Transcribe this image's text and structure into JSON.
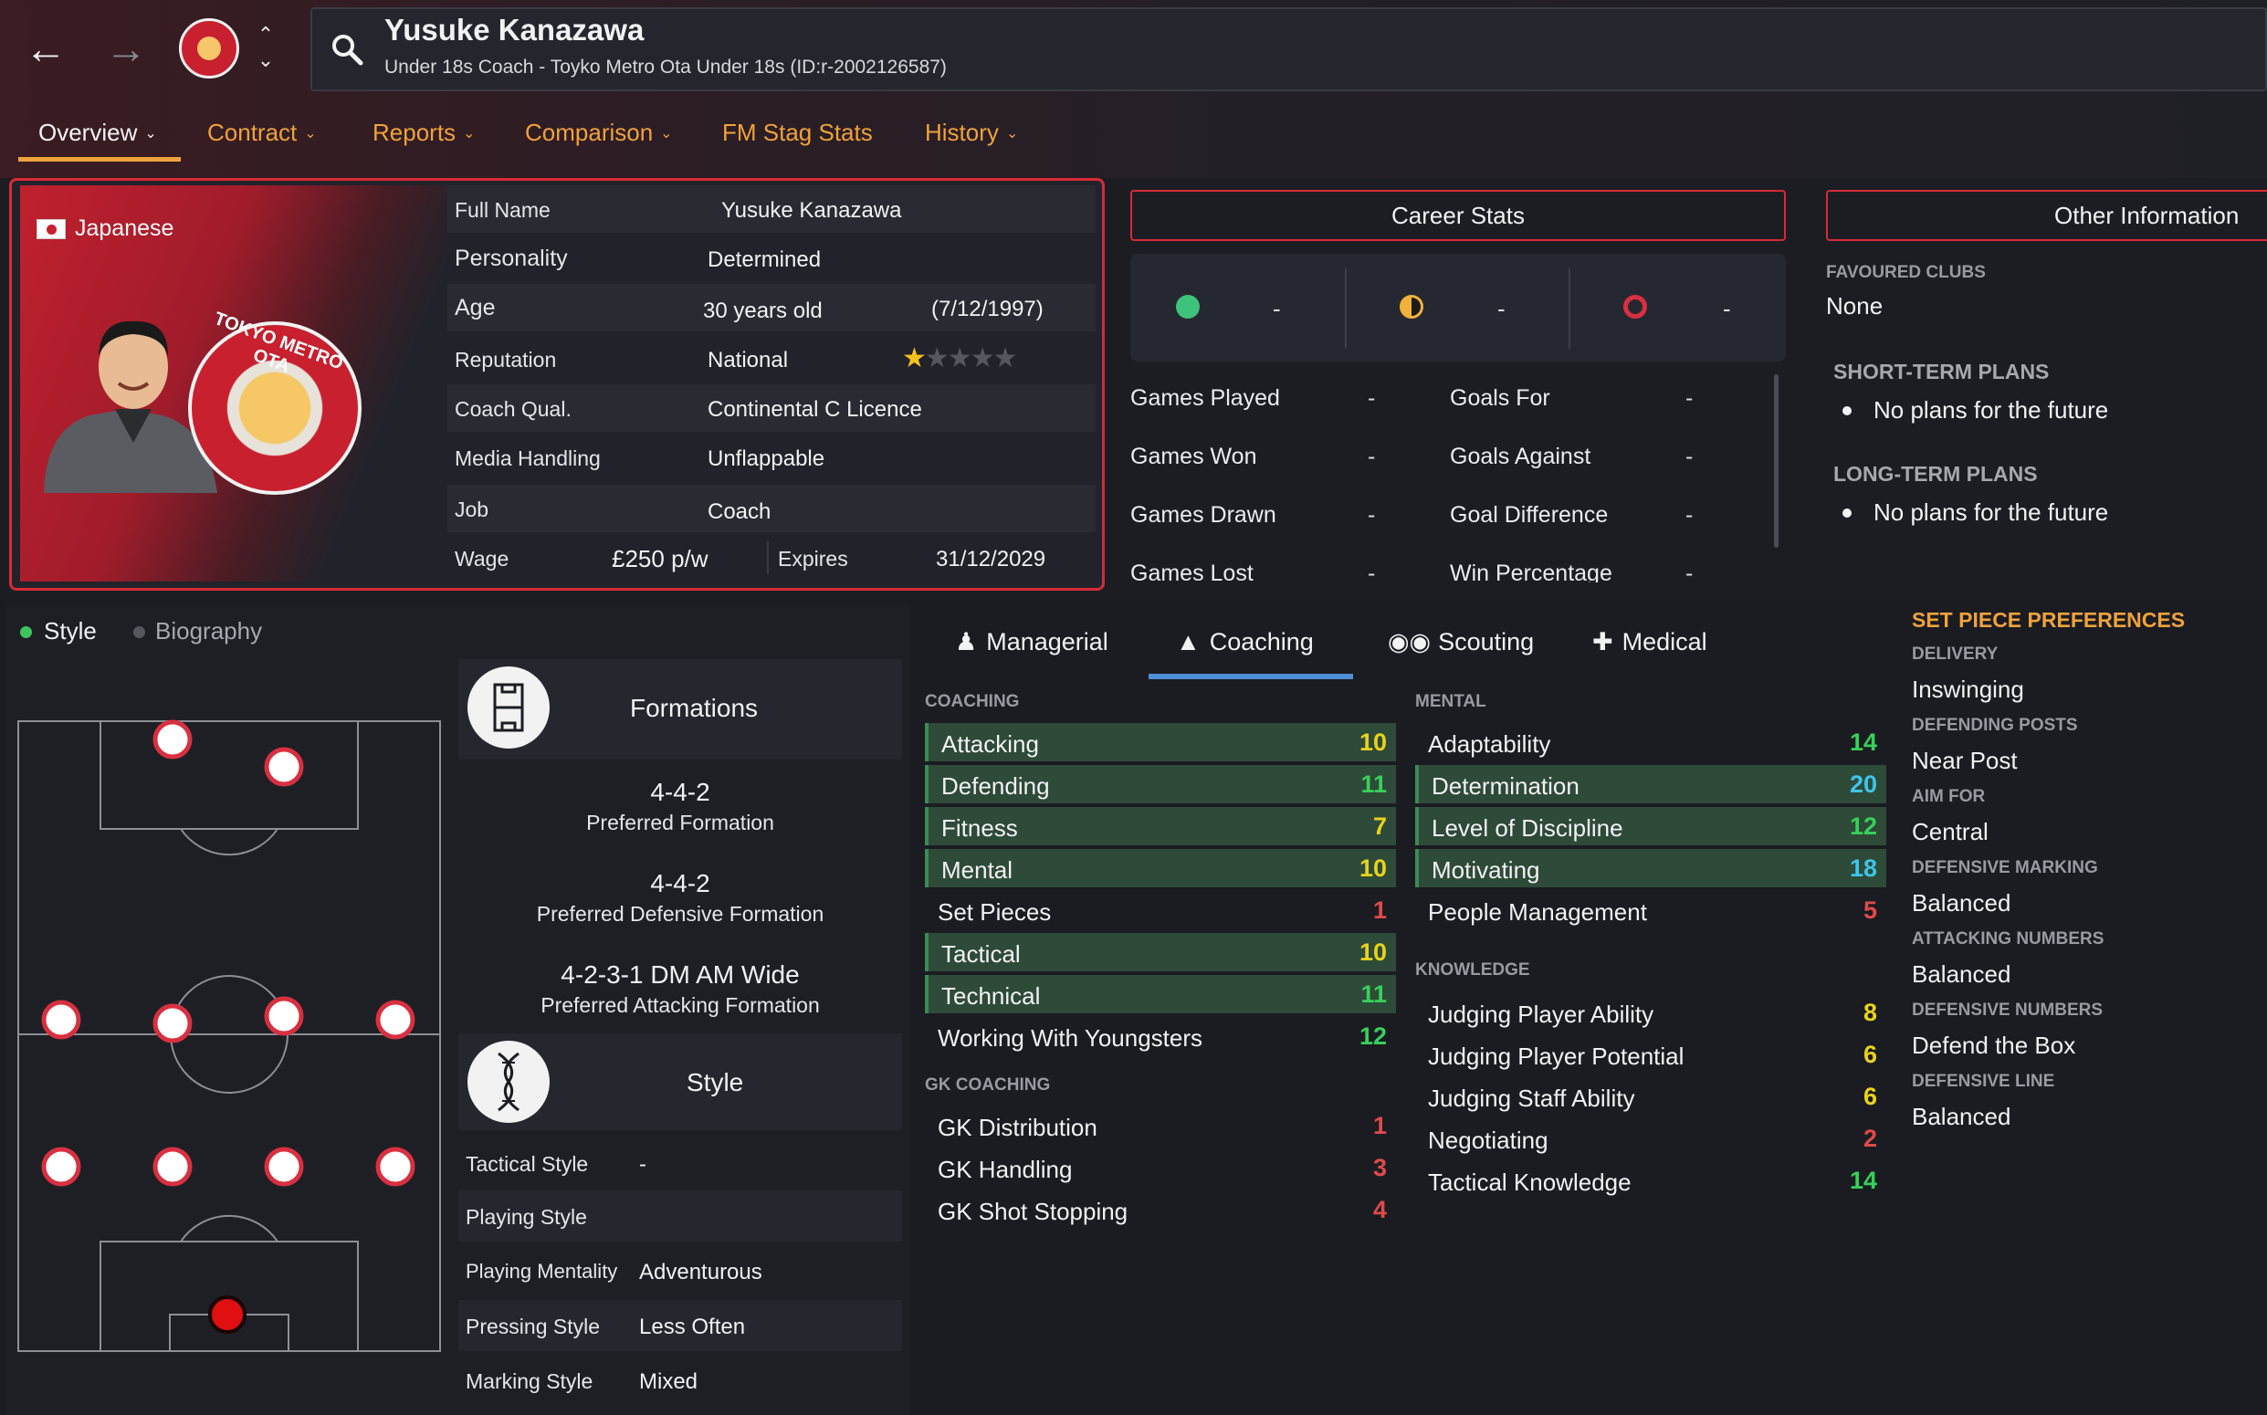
{
  "colors": {
    "accent": "#f0a23a",
    "card_border": "#d82a36",
    "highlight_row": "#2e4a38",
    "tab_underline": "#4e8fd6"
  },
  "header": {
    "title": "Yusuke Kanazawa",
    "subtitle": "Under 18s Coach - Toyko Metro Ota Under 18s (ID:r-2002126587)"
  },
  "tabs": [
    {
      "label": "Overview",
      "dropdown": true
    },
    {
      "label": "Contract",
      "dropdown": true
    },
    {
      "label": "Reports",
      "dropdown": true
    },
    {
      "label": "Comparison",
      "dropdown": true
    },
    {
      "label": "FM Stag Stats",
      "dropdown": false
    },
    {
      "label": "History",
      "dropdown": true
    }
  ],
  "profile": {
    "nationality": "Japanese",
    "club_crest_text": "TOKYO METRO OTA",
    "rows": [
      {
        "label": "Full Name",
        "value": "Yusuke Kanazawa"
      },
      {
        "label": "Personality",
        "value": "Determined"
      },
      {
        "label": "Age",
        "value": "30 years old",
        "extra": "(7/12/1997)"
      },
      {
        "label": "Reputation",
        "value": "National",
        "stars": 1,
        "stars_max": 5
      },
      {
        "label": "Coach Qual.",
        "value": "Continental C Licence"
      },
      {
        "label": "Media Handling",
        "value": "Unflappable"
      },
      {
        "label": "Job",
        "value": "Coach"
      },
      {
        "label": "Wage",
        "value": "£250 p/w",
        "extra_label": "Expires",
        "extra": "31/12/2029"
      }
    ]
  },
  "career_stats": {
    "title": "Career Stats",
    "summary": [
      "-",
      "-",
      "-"
    ],
    "left": [
      {
        "label": "Games Played",
        "value": "-"
      },
      {
        "label": "Games Won",
        "value": "-"
      },
      {
        "label": "Games Drawn",
        "value": "-"
      },
      {
        "label": "Games Lost",
        "value": "-"
      }
    ],
    "right": [
      {
        "label": "Goals For",
        "value": "-"
      },
      {
        "label": "Goals Against",
        "value": "-"
      },
      {
        "label": "Goal Difference",
        "value": "-"
      },
      {
        "label": "Win Percentage",
        "value": "-"
      }
    ]
  },
  "other_info": {
    "title": "Other Information",
    "favoured_clubs_label": "FAVOURED CLUBS",
    "favoured_clubs": "None",
    "short_term_label": "SHORT-TERM PLANS",
    "short_term": "No plans for the future",
    "long_term_label": "LONG-TERM PLANS",
    "long_term": "No plans for the future"
  },
  "style_tabs": {
    "style": "Style",
    "biography": "Biography"
  },
  "formations": {
    "title": "Formations",
    "preferred": "4-4-2",
    "preferred_label": "Preferred Formation",
    "defensive": "4-4-2",
    "defensive_label": "Preferred Defensive Formation",
    "attacking": "4-2-3-1 DM AM Wide",
    "attacking_label": "Preferred Attacking Formation"
  },
  "style": {
    "title": "Style",
    "rows": [
      {
        "label": "Tactical Style",
        "value": "-"
      },
      {
        "label": "Playing Style",
        "value": ""
      },
      {
        "label": "Playing Mentality",
        "value": "Adventurous"
      },
      {
        "label": "Pressing Style",
        "value": "Less Often"
      },
      {
        "label": "Marking Style",
        "value": "Mixed"
      }
    ]
  },
  "attr_tabs": [
    "Managerial",
    "Coaching",
    "Scouting",
    "Medical"
  ],
  "coaching": {
    "label": "COACHING",
    "items": [
      {
        "name": "Attacking",
        "value": "10",
        "hl": true,
        "color": "yellow"
      },
      {
        "name": "Defending",
        "value": "11",
        "hl": true,
        "color": "green"
      },
      {
        "name": "Fitness",
        "value": "7",
        "hl": true,
        "color": "yellow"
      },
      {
        "name": "Mental",
        "value": "10",
        "hl": true,
        "color": "yellow"
      },
      {
        "name": "Set Pieces",
        "value": "1",
        "hl": false,
        "color": "red"
      },
      {
        "name": "Tactical",
        "value": "10",
        "hl": true,
        "color": "yellow"
      },
      {
        "name": "Technical",
        "value": "11",
        "hl": true,
        "color": "green"
      },
      {
        "name": "Working With Youngsters",
        "value": "12",
        "hl": false,
        "color": "green"
      }
    ]
  },
  "gk_coaching": {
    "label": "GK COACHING",
    "items": [
      {
        "name": "GK Distribution",
        "value": "1",
        "color": "red"
      },
      {
        "name": "GK Handling",
        "value": "3",
        "color": "red"
      },
      {
        "name": "GK Shot Stopping",
        "value": "4",
        "color": "red"
      }
    ]
  },
  "mental": {
    "label": "MENTAL",
    "items": [
      {
        "name": "Adaptability",
        "value": "14",
        "hl": false,
        "color": "green"
      },
      {
        "name": "Determination",
        "value": "20",
        "hl": true,
        "color": "blue"
      },
      {
        "name": "Level of Discipline",
        "value": "12",
        "hl": true,
        "color": "green"
      },
      {
        "name": "Motivating",
        "value": "18",
        "hl": true,
        "color": "blue"
      },
      {
        "name": "People Management",
        "value": "5",
        "hl": false,
        "color": "red"
      }
    ]
  },
  "knowledge": {
    "label": "KNOWLEDGE",
    "items": [
      {
        "name": "Judging Player Ability",
        "value": "8",
        "color": "yellow"
      },
      {
        "name": "Judging Player Potential",
        "value": "6",
        "color": "yellow"
      },
      {
        "name": "Judging Staff Ability",
        "value": "6",
        "color": "yellow"
      },
      {
        "name": "Negotiating",
        "value": "2",
        "color": "red"
      },
      {
        "name": "Tactical Knowledge",
        "value": "14",
        "color": "green"
      }
    ]
  },
  "set_pieces": {
    "title": "SET PIECE PREFERENCES",
    "items": [
      {
        "label": "DELIVERY",
        "value": "Inswinging"
      },
      {
        "label": "DEFENDING POSTS",
        "value": "Near Post"
      },
      {
        "label": "AIM FOR",
        "value": "Central"
      },
      {
        "label": "DEFENSIVE MARKING",
        "value": "Balanced"
      },
      {
        "label": "ATTACKING NUMBERS",
        "value": "Balanced"
      },
      {
        "label": "DEFENSIVE NUMBERS",
        "value": "Defend the Box"
      },
      {
        "label": "DEFENSIVE LINE",
        "value": "Balanced"
      }
    ]
  }
}
